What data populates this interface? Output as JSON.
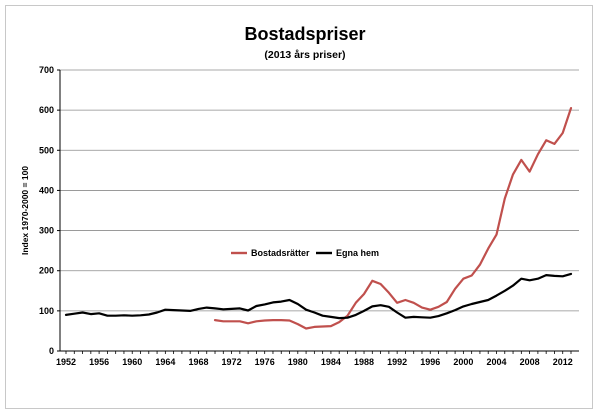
{
  "chart_data": {
    "type": "line",
    "title": "Bostadspriser",
    "subtitle": "(2013 års priser)",
    "xlabel": "",
    "ylabel": "Index 1970-2000 = 100",
    "xlim": [
      1952,
      2013
    ],
    "ylim": [
      0,
      700
    ],
    "x_ticks": [
      1952,
      1956,
      1960,
      1964,
      1968,
      1972,
      1976,
      1980,
      1984,
      1988,
      1992,
      1996,
      2000,
      2004,
      2008,
      2012
    ],
    "y_ticks": [
      0,
      100,
      200,
      300,
      400,
      500,
      600,
      700
    ],
    "grid": "horizontal",
    "legend_position": "center",
    "series": [
      {
        "name": "Bostadsrätter",
        "color": "#c0504d",
        "points": [
          [
            1970,
            77
          ],
          [
            1971,
            74
          ],
          [
            1972,
            74
          ],
          [
            1973,
            74
          ],
          [
            1974,
            69
          ],
          [
            1975,
            74
          ],
          [
            1976,
            76
          ],
          [
            1977,
            77
          ],
          [
            1978,
            77
          ],
          [
            1979,
            76
          ],
          [
            1980,
            67
          ],
          [
            1981,
            56
          ],
          [
            1982,
            60
          ],
          [
            1983,
            61
          ],
          [
            1984,
            62
          ],
          [
            1985,
            72
          ],
          [
            1986,
            88
          ],
          [
            1987,
            120
          ],
          [
            1988,
            142
          ],
          [
            1989,
            175
          ],
          [
            1990,
            167
          ],
          [
            1991,
            145
          ],
          [
            1992,
            120
          ],
          [
            1993,
            127
          ],
          [
            1994,
            120
          ],
          [
            1995,
            108
          ],
          [
            1996,
            103
          ],
          [
            1997,
            110
          ],
          [
            1998,
            122
          ],
          [
            1999,
            155
          ],
          [
            2000,
            180
          ],
          [
            2001,
            188
          ],
          [
            2002,
            215
          ],
          [
            2003,
            255
          ],
          [
            2004,
            290
          ],
          [
            2005,
            380
          ],
          [
            2006,
            440
          ],
          [
            2007,
            476
          ],
          [
            2008,
            447
          ],
          [
            2009,
            490
          ],
          [
            2010,
            525
          ],
          [
            2011,
            516
          ],
          [
            2012,
            543
          ],
          [
            2013,
            605
          ]
        ]
      },
      {
        "name": "Egna hem",
        "color": "#000000",
        "points": [
          [
            1952,
            90
          ],
          [
            1953,
            93
          ],
          [
            1954,
            96
          ],
          [
            1955,
            92
          ],
          [
            1956,
            94
          ],
          [
            1957,
            88
          ],
          [
            1958,
            88
          ],
          [
            1959,
            89
          ],
          [
            1960,
            88
          ],
          [
            1961,
            89
          ],
          [
            1962,
            91
          ],
          [
            1963,
            96
          ],
          [
            1964,
            103
          ],
          [
            1965,
            102
          ],
          [
            1966,
            101
          ],
          [
            1967,
            100
          ],
          [
            1968,
            105
          ],
          [
            1969,
            108
          ],
          [
            1970,
            106
          ],
          [
            1971,
            104
          ],
          [
            1972,
            105
          ],
          [
            1973,
            106
          ],
          [
            1974,
            101
          ],
          [
            1975,
            112
          ],
          [
            1976,
            116
          ],
          [
            1977,
            121
          ],
          [
            1978,
            123
          ],
          [
            1979,
            127
          ],
          [
            1980,
            117
          ],
          [
            1981,
            103
          ],
          [
            1982,
            96
          ],
          [
            1983,
            88
          ],
          [
            1984,
            85
          ],
          [
            1985,
            82
          ],
          [
            1986,
            83
          ],
          [
            1987,
            90
          ],
          [
            1988,
            100
          ],
          [
            1989,
            111
          ],
          [
            1990,
            114
          ],
          [
            1991,
            110
          ],
          [
            1992,
            96
          ],
          [
            1993,
            83
          ],
          [
            1994,
            85
          ],
          [
            1995,
            84
          ],
          [
            1996,
            83
          ],
          [
            1997,
            87
          ],
          [
            1998,
            94
          ],
          [
            1999,
            102
          ],
          [
            2000,
            111
          ],
          [
            2001,
            117
          ],
          [
            2002,
            122
          ],
          [
            2003,
            127
          ],
          [
            2004,
            138
          ],
          [
            2005,
            150
          ],
          [
            2006,
            163
          ],
          [
            2007,
            180
          ],
          [
            2008,
            176
          ],
          [
            2009,
            180
          ],
          [
            2010,
            189
          ],
          [
            2011,
            187
          ],
          [
            2012,
            186
          ],
          [
            2013,
            192
          ]
        ]
      }
    ]
  }
}
